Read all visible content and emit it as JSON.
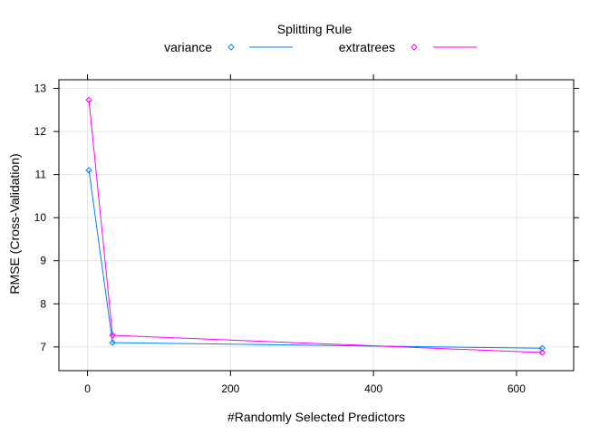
{
  "chart_data": {
    "type": "line",
    "legend": {
      "title": "Splitting Rule",
      "placement": "top"
    },
    "xlabel": "#Randomly Selected Predictors",
    "ylabel": "RMSE (Cross-Validation)",
    "xlim": [
      -40,
      680
    ],
    "ylim": [
      6.45,
      13.2
    ],
    "xticks": [
      0,
      200,
      400,
      600
    ],
    "yticks": [
      7,
      8,
      9,
      10,
      11,
      12,
      13
    ],
    "grid": true,
    "series": [
      {
        "name": "variance",
        "color": "#0080ff",
        "marker": "diamond-open",
        "x": [
          2,
          35,
          636
        ],
        "y": [
          11.1,
          7.1,
          6.97
        ]
      },
      {
        "name": "extratrees",
        "color": "#ff00ff",
        "marker": "diamond-open",
        "x": [
          2,
          35,
          636
        ],
        "y": [
          12.73,
          7.27,
          6.87
        ]
      }
    ]
  }
}
